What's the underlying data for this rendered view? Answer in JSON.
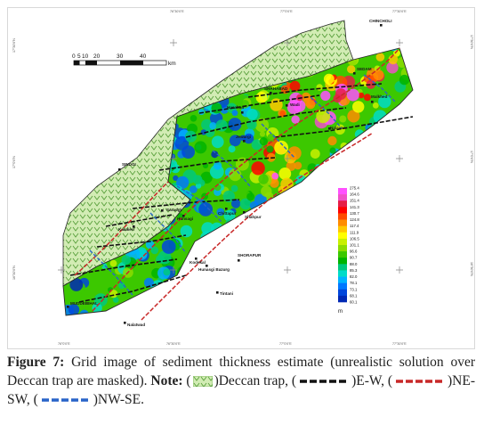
{
  "map": {
    "scale_bar": {
      "ticks": [
        "0",
        "5",
        "10",
        "20",
        "30",
        "40"
      ],
      "unit": "km"
    },
    "coords": {
      "top": [
        "76°30'0\"E",
        "77°0'0\"E",
        "77°30'0\"E"
      ],
      "bottom": [
        "76°0'0\"E",
        "76°30'0\"E",
        "77°0'0\"E",
        "77°30'0\"E"
      ],
      "left": [
        "17°30'0\"N",
        "17°0'0\"N",
        "16°30'0\"N"
      ],
      "right": [
        "17°30'0\"N",
        "17°0'0\"N",
        "16°30'0\"N"
      ]
    },
    "places": [
      "CHINCHOLI",
      "SEDAM",
      "SHAHABAD",
      "Wadi",
      "Hasabad",
      "Malkhed",
      "Jewargi",
      "Nalavar",
      "SINDGI",
      "Saradgi",
      "Chittapur",
      "Shahpur",
      "Kalakeri",
      "Hunsagi",
      "SHORAPUR",
      "Kodekal",
      "Hunasgi Bazurg",
      "Tintani",
      "MUDDEBIHAL",
      "Nalatwad"
    ],
    "legend": {
      "values": [
        "275.4",
        "164.6",
        "151.4",
        "141.3",
        "130.7",
        "124.8",
        "117.4",
        "111.9",
        "106.5",
        "101.1",
        "96.6",
        "90.7",
        "88.0",
        "85.3",
        "82.0",
        "78.1",
        "73.1",
        "68.1",
        "60.1"
      ],
      "unit": "m",
      "colors": [
        "#ff50ff",
        "#f050c8",
        "#e61e46",
        "#ff0000",
        "#ff4b00",
        "#ff8c00",
        "#ffc800",
        "#ffff00",
        "#c8f000",
        "#8cdc00",
        "#3cc800",
        "#00b400",
        "#00c87d",
        "#00dcc8",
        "#00b4ff",
        "#0078ff",
        "#0046dc",
        "#0028b4"
      ]
    },
    "colors": {
      "trap_fill": "#d2ecb4",
      "trap_mark": "#59a03c",
      "ew": "#111111",
      "nesw": "#c82828",
      "nwse": "#2864c8"
    }
  },
  "caption": {
    "figure_label": "Figure 7:",
    "text_1": " Grid image of sediment thickness estimate (unrealistic solution over Deccan trap are masked). ",
    "note_label": "Note:",
    "text_open_1": " (",
    "text_trap": ")Deccan trap, (",
    "text_ew": ")E-W, (",
    "text_nesw": ")NE-SW, (",
    "text_nwse": ")NW-SE."
  }
}
